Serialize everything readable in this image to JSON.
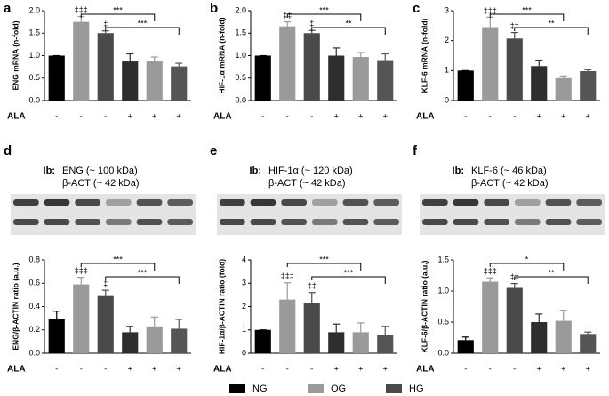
{
  "chart_data": [
    {
      "type": "bar",
      "panel": "a",
      "ylabel": "ENG mRNA (n-fold)",
      "xlabel": "ALA",
      "categories": [
        "-",
        "-",
        "-",
        "+",
        "+",
        "+"
      ],
      "values": [
        1.0,
        1.75,
        1.5,
        0.87,
        0.87,
        0.76
      ],
      "errors": [
        0,
        0.12,
        0.05,
        0.17,
        0.1,
        0.07
      ],
      "colors": [
        "#000000",
        "#9a9a9a",
        "#4a4a4a",
        "#2e2e2e",
        "#9a9a9a",
        "#555555"
      ],
      "ylim": [
        0,
        2
      ],
      "yticks": [
        {
          "value": 0,
          "label": "0.0"
        },
        0.5,
        {
          "value": 1,
          "label": "1.0"
        },
        1.5,
        {
          "value": 2,
          "label": "2.0"
        }
      ],
      "bar_marks": [
        null,
        "‡‡‡",
        "‡",
        null,
        null,
        null
      ],
      "brackets": [
        {
          "bars": [
            1,
            4
          ],
          "label": "***"
        },
        {
          "bars": [
            2,
            5
          ],
          "label": "***"
        }
      ]
    },
    {
      "type": "bar",
      "panel": "b",
      "ylabel": "HIF-1α mRNA (n-fold)",
      "xlabel": "ALA",
      "categories": [
        "-",
        "-",
        "-",
        "+",
        "+",
        "+"
      ],
      "values": [
        1.0,
        1.65,
        1.5,
        1.0,
        0.97,
        0.9
      ],
      "errors": [
        0,
        0.1,
        0.06,
        0.17,
        0.1,
        0.14
      ],
      "colors": [
        "#000000",
        "#9a9a9a",
        "#4a4a4a",
        "#2e2e2e",
        "#9a9a9a",
        "#555555"
      ],
      "ylim": [
        0,
        2
      ],
      "yticks": [
        {
          "value": 0,
          "label": "0.0"
        },
        0.5,
        {
          "value": 1,
          "label": "1.0"
        },
        1.5,
        {
          "value": 2,
          "label": "2.0"
        }
      ],
      "bar_marks": [
        null,
        "‡‡",
        "‡",
        null,
        null,
        null
      ],
      "brackets": [
        {
          "bars": [
            1,
            4
          ],
          "label": "***"
        },
        {
          "bars": [
            2,
            5
          ],
          "label": "**"
        }
      ]
    },
    {
      "type": "bar",
      "panel": "c",
      "ylabel": "KLF-6 mRNA (n-fold)",
      "xlabel": "ALA",
      "categories": [
        "-",
        "-",
        "-",
        "+",
        "+",
        "+"
      ],
      "values": [
        1.0,
        2.45,
        2.07,
        1.15,
        0.75,
        0.98
      ],
      "errors": [
        0,
        0.33,
        0.2,
        0.2,
        0.07,
        0.05
      ],
      "colors": [
        "#000000",
        "#9a9a9a",
        "#4a4a4a",
        "#2e2e2e",
        "#9a9a9a",
        "#555555"
      ],
      "ylim": [
        0,
        3
      ],
      "yticks": [
        0,
        1,
        2,
        3
      ],
      "bar_marks": [
        null,
        "‡‡‡",
        "‡‡",
        null,
        null,
        null
      ],
      "brackets": [
        {
          "bars": [
            1,
            4
          ],
          "label": "***"
        },
        {
          "bars": [
            2,
            5
          ],
          "label": "**"
        }
      ]
    },
    {
      "type": "bar",
      "panel": "d",
      "ylabel": "ENG/β-ACTIN ratio (a.u.)",
      "xlabel": "ALA",
      "blot": {
        "prefix": "Ib:",
        "lines": [
          "ENG (~ 100 kDa)",
          "β-ACT (~ 42 kDa)"
        ]
      },
      "categories": [
        "-",
        "-",
        "-",
        "+",
        "+",
        "+"
      ],
      "values": [
        0.29,
        0.59,
        0.49,
        0.18,
        0.23,
        0.21
      ],
      "errors": [
        0.07,
        0.06,
        0.05,
        0.05,
        0.08,
        0.08
      ],
      "colors": [
        "#000000",
        "#9a9a9a",
        "#4a4a4a",
        "#2e2e2e",
        "#9a9a9a",
        "#555555"
      ],
      "ylim": [
        0,
        0.8
      ],
      "yticks": [
        {
          "value": 0,
          "label": "0.0"
        },
        0.2,
        0.4,
        0.6,
        0.8
      ],
      "bar_marks": [
        null,
        "‡‡‡",
        "‡",
        null,
        null,
        null
      ],
      "brackets": [
        {
          "bars": [
            1,
            4
          ],
          "label": "***"
        },
        {
          "bars": [
            2,
            5
          ],
          "label": "***"
        }
      ]
    },
    {
      "type": "bar",
      "panel": "e",
      "ylabel": "HIF-1α/β-ACTIN ratio (fold)",
      "xlabel": "ALA",
      "blot": {
        "prefix": "Ib:",
        "lines": [
          "HIF-1α (~ 120 kDa)",
          "β-ACT (~ 42 kDa)"
        ]
      },
      "categories": [
        "-",
        "-",
        "-",
        "+",
        "+",
        "+"
      ],
      "values": [
        1.0,
        2.3,
        2.15,
        0.9,
        0.9,
        0.8
      ],
      "errors": [
        0,
        0.72,
        0.45,
        0.35,
        0.4,
        0.35
      ],
      "colors": [
        "#000000",
        "#9a9a9a",
        "#4a4a4a",
        "#2e2e2e",
        "#9a9a9a",
        "#555555"
      ],
      "ylim": [
        0,
        4
      ],
      "yticks": [
        0,
        1,
        2,
        3,
        4
      ],
      "bar_marks": [
        null,
        "‡‡‡",
        "‡‡",
        null,
        null,
        null
      ],
      "brackets": [
        {
          "bars": [
            1,
            4
          ],
          "label": "***"
        },
        {
          "bars": [
            2,
            5
          ],
          "label": "***"
        }
      ]
    },
    {
      "type": "bar",
      "panel": "f",
      "ylabel": "KLF-6/β-ACTIN ratio (a.u.)",
      "xlabel": "ALA",
      "blot": {
        "prefix": "Ib:",
        "lines": [
          "KLF-6 (~ 46 kDa)",
          "β-ACT (~ 42 kDa)"
        ]
      },
      "categories": [
        "-",
        "-",
        "-",
        "+",
        "+",
        "+"
      ],
      "values": [
        0.21,
        1.15,
        1.05,
        0.5,
        0.52,
        0.31
      ],
      "errors": [
        0.05,
        0.06,
        0.07,
        0.13,
        0.17,
        0.03
      ],
      "colors": [
        "#000000",
        "#9a9a9a",
        "#4a4a4a",
        "#2e2e2e",
        "#9a9a9a",
        "#555555"
      ],
      "ylim": [
        0,
        1.5
      ],
      "yticks": [
        {
          "value": 0,
          "label": "0.0"
        },
        0.5,
        {
          "value": 1,
          "label": "1.0"
        },
        1.5
      ],
      "bar_marks": [
        null,
        "‡‡‡",
        "‡‡",
        null,
        null,
        null
      ],
      "brackets": [
        {
          "bars": [
            1,
            4
          ],
          "label": "*"
        },
        {
          "bars": [
            2,
            5
          ],
          "label": "**"
        }
      ]
    }
  ],
  "legend": [
    {
      "name": "NG",
      "color": "#000000"
    },
    {
      "name": "OG",
      "color": "#9a9a9a"
    },
    {
      "name": "HG",
      "color": "#4a4a4a"
    }
  ]
}
